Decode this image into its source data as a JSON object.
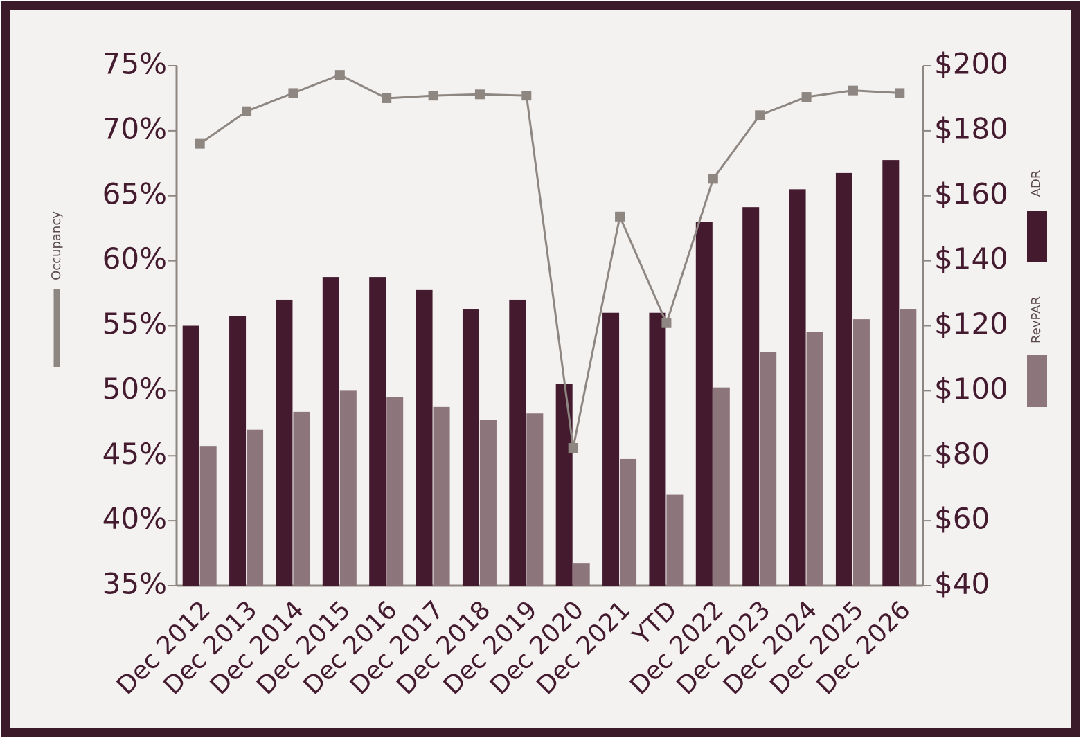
{
  "chart_data": {
    "type": "combo",
    "categories": [
      "Dec 2012",
      "Dec 2013",
      "Dec 2014",
      "Dec 2015",
      "Dec 2016",
      "Dec 2017",
      "Dec 2018",
      "Dec 2019",
      "Dec 2020",
      "Dec 2021",
      "YTD",
      "Dec 2022",
      "Dec 2023",
      "Dec 2024",
      "Dec 2025",
      "Dec 2026"
    ],
    "series": [
      {
        "name": "ADR",
        "type": "bar",
        "axis": "y2",
        "color": "#431a2e",
        "values": [
          120,
          123,
          128,
          135,
          135,
          131,
          125,
          128,
          102,
          124,
          124,
          152,
          156.5,
          162,
          167,
          171
        ]
      },
      {
        "name": "RevPAR",
        "type": "bar",
        "axis": "y2",
        "color": "#8c757b",
        "values": [
          83,
          88,
          93.5,
          100,
          98,
          95,
          91,
          93,
          47,
          79,
          68,
          101,
          112,
          118,
          122,
          125
        ]
      },
      {
        "name": "Occupancy",
        "type": "line",
        "axis": "y",
        "color": "#8e8680",
        "values": [
          69.0,
          71.5,
          72.9,
          74.3,
          72.5,
          72.7,
          72.8,
          72.7,
          45.6,
          63.4,
          55.2,
          66.3,
          71.2,
          72.6,
          73.1,
          72.9
        ]
      }
    ],
    "ylim": [
      35,
      75
    ],
    "yticks": [
      {
        "value": 35,
        "label": "35%"
      },
      {
        "value": 40,
        "label": "40%"
      },
      {
        "value": 45,
        "label": "45%"
      },
      {
        "value": 50,
        "label": "50%"
      },
      {
        "value": 55,
        "label": "55%"
      },
      {
        "value": 60,
        "label": "60%"
      },
      {
        "value": 65,
        "label": "65%"
      },
      {
        "value": 70,
        "label": "70%"
      },
      {
        "value": 75,
        "label": "75%"
      }
    ],
    "y2lim": [
      40,
      200
    ],
    "y2ticks": [
      {
        "value": 40,
        "label": "$40"
      },
      {
        "value": 60,
        "label": "$60"
      },
      {
        "value": 80,
        "label": "$80"
      },
      {
        "value": 100,
        "label": "$100"
      },
      {
        "value": 120,
        "label": "$120"
      },
      {
        "value": 140,
        "label": "$140"
      },
      {
        "value": 160,
        "label": "$160"
      },
      {
        "value": 180,
        "label": "$180"
      },
      {
        "value": 200,
        "label": "$200"
      }
    ]
  }
}
